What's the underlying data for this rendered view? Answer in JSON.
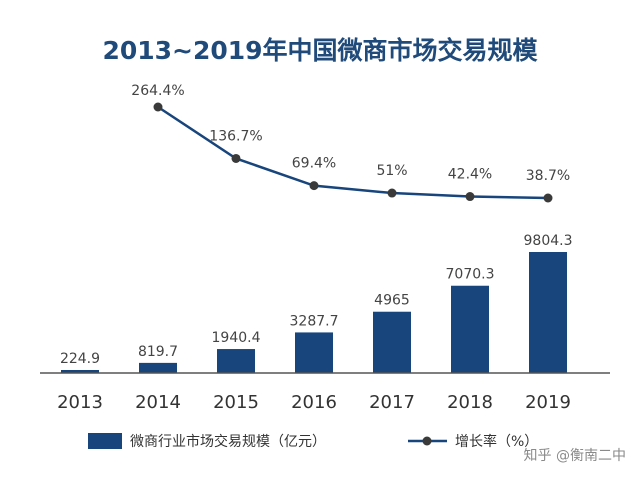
{
  "chart_data": {
    "type": "bar",
    "title": "2013~2019年中国微商市场交易规模",
    "categories": [
      "2013",
      "2014",
      "2015",
      "2016",
      "2017",
      "2018",
      "2019"
    ],
    "series": [
      {
        "name": "微商行业市场交易规模（亿元）",
        "type": "bar",
        "values": [
          224.9,
          819.7,
          1940.4,
          3287.7,
          4965,
          7070.3,
          9804.3
        ],
        "labels": [
          "224.9",
          "819.7",
          "1940.4",
          "3287.7",
          "4965",
          "7070.3",
          "9804.3"
        ]
      },
      {
        "name": "增长率（%）",
        "type": "line",
        "x": [
          "2014",
          "2015",
          "2016",
          "2017",
          "2018",
          "2019"
        ],
        "values": [
          264.4,
          136.7,
          69.4,
          51,
          42.4,
          38.7
        ],
        "labels": [
          "264.4%",
          "136.7%",
          "69.4%",
          "51%",
          "42.4%",
          "38.7%"
        ]
      }
    ],
    "xlabel": "",
    "ylabel": "",
    "legend": "bottom",
    "colors": {
      "bar": "#17457c",
      "line": "#17457c",
      "marker": "#3a3a3a",
      "title": "#1f4a7a"
    }
  },
  "watermark": "知乎 @衡南二中"
}
